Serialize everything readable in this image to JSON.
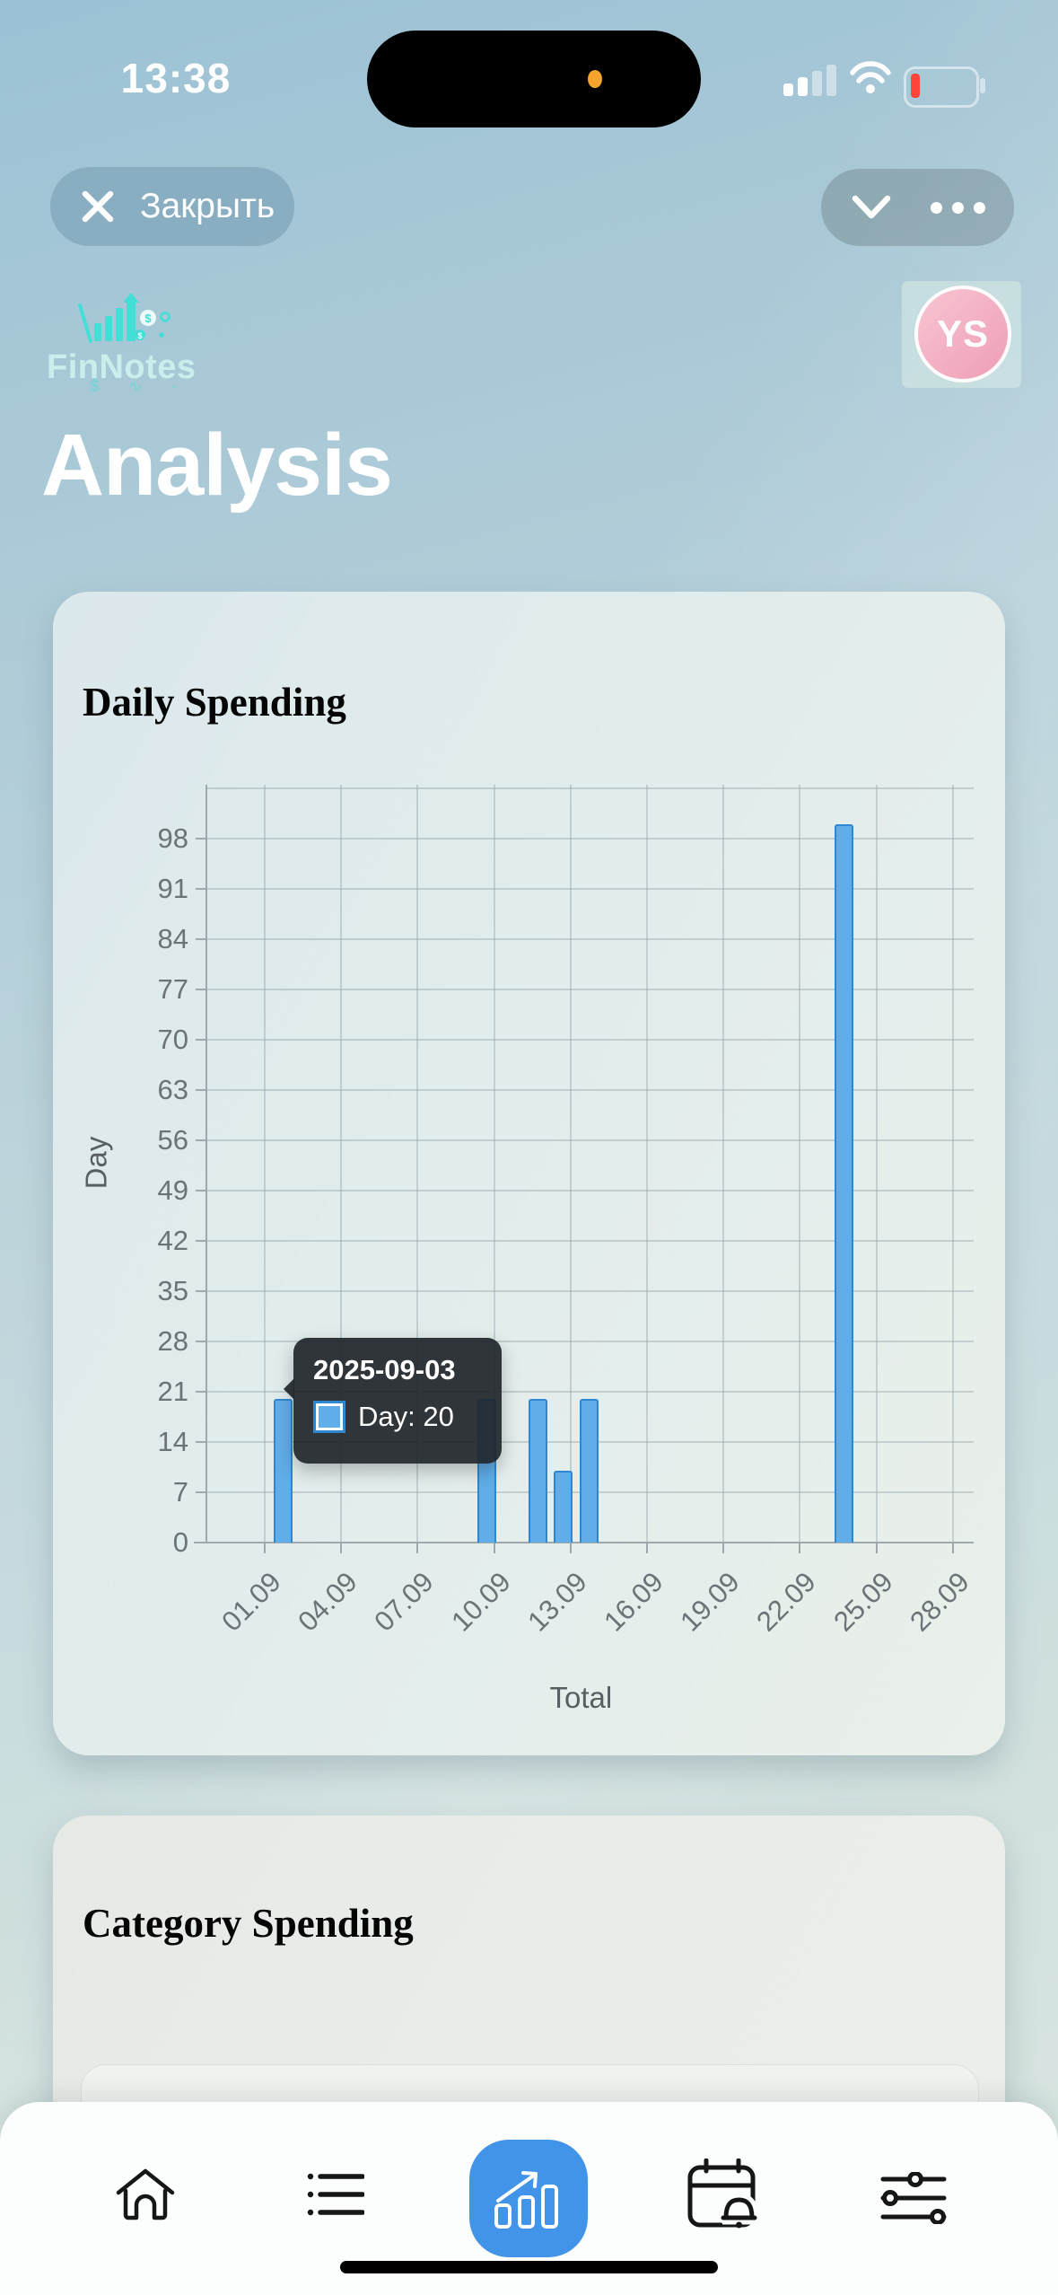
{
  "status_bar": {
    "time": "13:38"
  },
  "toolbar": {
    "close_label": "Закрыть"
  },
  "brand": {
    "app_name": "FinNotes"
  },
  "user": {
    "avatar_initials": "YS"
  },
  "page": {
    "title": "Analysis"
  },
  "cards": {
    "daily_title": "Daily Spending",
    "category_title": "Category Spending"
  },
  "chart_data": {
    "type": "bar",
    "title": "Daily Spending",
    "xlabel": "Total",
    "ylabel": "Day",
    "x_tick_labels": [
      "01.09",
      "04.09",
      "07.09",
      "10.09",
      "13.09",
      "16.09",
      "19.09",
      "22.09",
      "25.09",
      "28.09"
    ],
    "y_ticks": [
      0,
      7,
      14,
      21,
      28,
      35,
      42,
      49,
      56,
      63,
      70,
      77,
      84,
      91,
      98
    ],
    "ylim": [
      0,
      105
    ],
    "grid": true,
    "series": [
      {
        "name": "Day",
        "color": "#60ade8",
        "border_color": "#2f87d0",
        "points": [
          {
            "date": "2025-09-03",
            "value": 20
          },
          {
            "date": "2025-09-11",
            "value": 20
          },
          {
            "date": "2025-09-13",
            "value": 20
          },
          {
            "date": "2025-09-14",
            "value": 10
          },
          {
            "date": "2025-09-15",
            "value": 20
          },
          {
            "date": "2025-09-25",
            "value": 100
          }
        ]
      }
    ],
    "tooltip": {
      "title": "2025-09-03",
      "label": "Day: 20"
    }
  },
  "tabbar": {
    "items": [
      "home",
      "transactions",
      "analytics",
      "calendar",
      "settings"
    ],
    "active": "analytics"
  },
  "colors": {
    "accent_blue": "#4294e8",
    "brand_teal": "#43dfd6",
    "battery_low_red": "#ff453a",
    "island_dot_orange": "#f5a42c"
  }
}
